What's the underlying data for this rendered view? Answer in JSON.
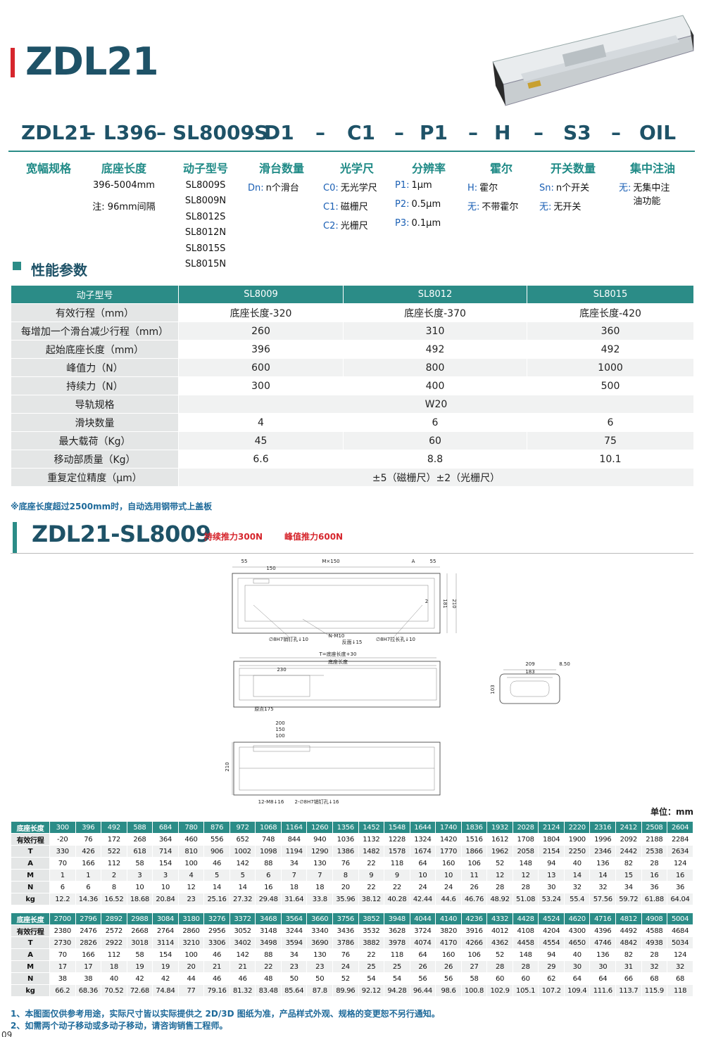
{
  "header": {
    "title": "ZDL21"
  },
  "model_code": {
    "parts": [
      "ZDL21",
      "–",
      "L396",
      "–",
      "SL8009S",
      "–",
      "D1",
      "–",
      "C1",
      "–",
      "P1",
      "–",
      "H",
      "–",
      "S3",
      "–",
      "OIL"
    ]
  },
  "options": [
    {
      "title": "宽幅规格"
    },
    {
      "title": "底座长度",
      "items": [
        "396-5004mm",
        "注: 96mm间隔"
      ]
    },
    {
      "title": "动子型号",
      "items": [
        "SL8009S",
        "SL8009N",
        "SL8012S",
        "SL8012N",
        "SL8015S",
        "SL8015N"
      ]
    },
    {
      "title": "滑台数量",
      "items": [
        {
          "code": "Dn:",
          "text": "n个滑台"
        }
      ]
    },
    {
      "title": "光学尺",
      "items": [
        {
          "code": "C0:",
          "text": "无光学尺"
        },
        {
          "code": "C1:",
          "text": "磁栅尺"
        },
        {
          "code": "C2:",
          "text": "光栅尺"
        }
      ]
    },
    {
      "title": "分辨率",
      "items": [
        {
          "code": "P1:",
          "text": "1μm"
        },
        {
          "code": "P2:",
          "text": "0.5μm"
        },
        {
          "code": "P3:",
          "text": "0.1μm"
        }
      ]
    },
    {
      "title": "霍尔",
      "items": [
        {
          "code": "H:",
          "text": "霍尔"
        },
        {
          "code": "无:",
          "text": "不带霍尔"
        }
      ]
    },
    {
      "title": "开关数量",
      "items": [
        {
          "code": "Sn:",
          "text": "n个开关"
        },
        {
          "code": "无:",
          "text": "无开关"
        }
      ]
    },
    {
      "title": "集中注油",
      "items": [
        {
          "code": "无:",
          "text": "无集中注油功能"
        }
      ]
    }
  ],
  "performance": {
    "title": "性能参数",
    "header": [
      "动子型号",
      "SL8009",
      "SL8012",
      "SL8015"
    ],
    "rows": [
      [
        "有效行程（mm）",
        "底座长度-320",
        "底座长度-370",
        "底座长度-420"
      ],
      [
        "每增加一个滑台减少行程（mm）",
        "260",
        "310",
        "360"
      ],
      [
        "起始底座长度（mm）",
        "396",
        "492",
        "492"
      ],
      [
        "峰值力（N）",
        "600",
        "800",
        "1000"
      ],
      [
        "持续力（N）",
        "300",
        "400",
        "500"
      ],
      [
        "导轨规格",
        "W20"
      ],
      [
        "滑块数量",
        "4",
        "6",
        "6"
      ],
      [
        "最大载荷（Kg）",
        "45",
        "60",
        "75"
      ],
      [
        "移动部质量（Kg）",
        "6.6",
        "8.8",
        "10.1"
      ],
      [
        "重复定位精度（μm）",
        "±5（磁栅尺）±2（光栅尺）"
      ]
    ],
    "note": "※底座长度超过2500mm时，自动选用钢带式上盖板"
  },
  "section2": {
    "title": "ZDL21-SL8009",
    "continuous": "持续推力300N",
    "peak": "峰值推力600N"
  },
  "drawing": {
    "labels": [
      "55",
      "150",
      "M×150",
      "A",
      "55",
      "181",
      "210",
      "2",
      "∅8H7销钉孔↓10",
      "N-M10",
      "反面↓15",
      "∅8H7拉长孔↓10",
      "T=底座长度+30",
      "底座长度",
      "230",
      "原点175",
      "209",
      "183",
      "8.50",
      "103",
      "200",
      "150",
      "100",
      "210",
      "12-M8↓16",
      "2-∅8H7销钉孔↓16"
    ]
  },
  "dimensions": {
    "unit": "单位：mm",
    "tables": [
      {
        "rows": [
          {
            "label": "底座长度",
            "values": [
              300,
              396,
              492,
              588,
              684,
              780,
              876,
              972,
              1068,
              1164,
              1260,
              1356,
              1452,
              1548,
              1644,
              1740,
              1836,
              1932,
              2028,
              2124,
              2220,
              2316,
              2412,
              2508,
              2604
            ]
          },
          {
            "label": "有效行程",
            "values": [
              -20,
              76,
              172,
              268,
              364,
              460,
              556,
              652,
              748,
              844,
              940,
              1036,
              1132,
              1228,
              1324,
              1420,
              1516,
              1612,
              1708,
              1804,
              1900,
              1996,
              2092,
              2188,
              2284
            ]
          },
          {
            "label": "T",
            "values": [
              330,
              426,
              522,
              618,
              714,
              810,
              906,
              1002,
              1098,
              1194,
              1290,
              1386,
              1482,
              1578,
              1674,
              1770,
              1866,
              1962,
              2058,
              2154,
              2250,
              2346,
              2442,
              2538,
              2634
            ]
          },
          {
            "label": "A",
            "values": [
              70,
              166,
              112,
              58,
              154,
              100,
              46,
              142,
              88,
              34,
              130,
              76,
              22,
              118,
              64,
              160,
              106,
              52,
              148,
              94,
              40,
              136,
              82,
              28,
              124
            ]
          },
          {
            "label": "M",
            "values": [
              1,
              1,
              2,
              3,
              3,
              4,
              5,
              5,
              6,
              7,
              7,
              8,
              9,
              9,
              10,
              10,
              11,
              12,
              12,
              13,
              14,
              14,
              15,
              16,
              16
            ]
          },
          {
            "label": "N",
            "values": [
              6,
              6,
              8,
              10,
              10,
              12,
              14,
              14,
              16,
              18,
              18,
              20,
              22,
              22,
              24,
              24,
              26,
              28,
              28,
              30,
              32,
              32,
              34,
              36,
              36
            ]
          },
          {
            "label": "kg",
            "values": [
              12.2,
              14.36,
              16.52,
              18.68,
              20.84,
              23,
              25.16,
              27.32,
              29.48,
              31.64,
              33.8,
              35.96,
              38.12,
              40.28,
              42.44,
              44.6,
              46.76,
              48.92,
              51.08,
              53.24,
              55.4,
              57.56,
              59.72,
              61.88,
              64.04
            ]
          }
        ]
      },
      {
        "rows": [
          {
            "label": "底座长度",
            "values": [
              2700,
              2796,
              2892,
              2988,
              3084,
              3180,
              3276,
              3372,
              3468,
              3564,
              3660,
              3756,
              3852,
              3948,
              4044,
              4140,
              4236,
              4332,
              4428,
              4524,
              4620,
              4716,
              4812,
              4908,
              5004
            ]
          },
          {
            "label": "有效行程",
            "values": [
              2380,
              2476,
              2572,
              2668,
              2764,
              2860,
              2956,
              3052,
              3148,
              3244,
              3340,
              3436,
              3532,
              3628,
              3724,
              3820,
              3916,
              4012,
              4108,
              4204,
              4300,
              4396,
              4492,
              4588,
              4684
            ]
          },
          {
            "label": "T",
            "values": [
              2730,
              2826,
              2922,
              3018,
              3114,
              3210,
              3306,
              3402,
              3498,
              3594,
              3690,
              3786,
              3882,
              3978,
              4074,
              4170,
              4266,
              4362,
              4458,
              4554,
              4650,
              4746,
              4842,
              4938,
              5034
            ]
          },
          {
            "label": "A",
            "values": [
              70,
              166,
              112,
              58,
              154,
              100,
              46,
              142,
              88,
              34,
              130,
              76,
              22,
              118,
              64,
              160,
              106,
              52,
              148,
              94,
              40,
              136,
              82,
              28,
              124
            ]
          },
          {
            "label": "M",
            "values": [
              17,
              17,
              18,
              19,
              19,
              20,
              21,
              21,
              22,
              23,
              23,
              24,
              25,
              25,
              26,
              26,
              27,
              28,
              28,
              29,
              30,
              30,
              31,
              32,
              32
            ]
          },
          {
            "label": "N",
            "values": [
              38,
              38,
              40,
              42,
              42,
              44,
              46,
              46,
              48,
              50,
              50,
              52,
              54,
              54,
              56,
              56,
              58,
              60,
              60,
              62,
              64,
              64,
              66,
              68,
              68
            ]
          },
          {
            "label": "kg",
            "values": [
              66.2,
              68.36,
              70.52,
              72.68,
              74.84,
              77,
              79.16,
              81.32,
              83.48,
              85.64,
              87.8,
              89.96,
              92.12,
              94.28,
              96.44,
              98.6,
              100.8,
              102.9,
              105.1,
              107.2,
              109.4,
              111.6,
              113.7,
              115.9,
              118
            ]
          }
        ]
      }
    ]
  },
  "footnotes": [
    "1、本图面仅供参考用途，实际尺寸皆以实际提供之 2D/3D 图纸为准，产品样式外观、规格的变更恕不另行通知。",
    "2、如需两个动子移动或多动子移动，请咨询销售工程师。"
  ],
  "page_number": "09"
}
